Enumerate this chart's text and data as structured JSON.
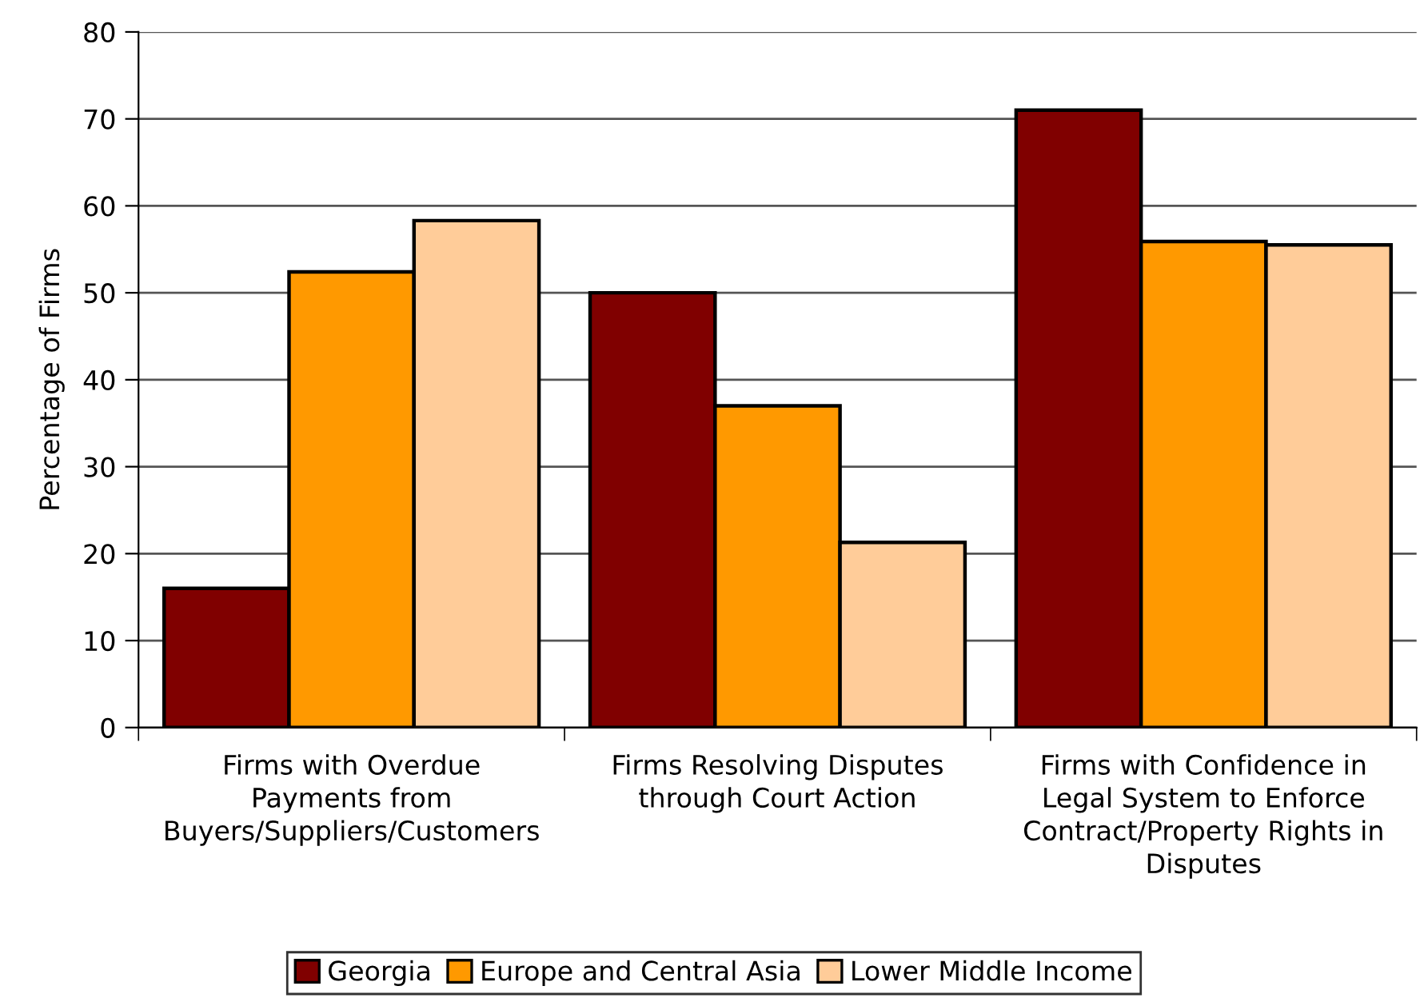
{
  "chart_data": {
    "type": "bar",
    "ylabel": "Percentage of Firms",
    "categories": [
      "Firms with Overdue Payments from Buyers/Suppliers/Customers",
      "Firms Resolving Disputes through Court Action",
      "Firms with Confidence in Legal System to Enforce Contract/Property Rights in Disputes"
    ],
    "series": [
      {
        "name": "Georgia",
        "color": "#800000",
        "values": [
          16,
          50,
          71
        ]
      },
      {
        "name": "Europe and Central Asia",
        "color": "#ff9900",
        "values": [
          52.4,
          37,
          55.9
        ]
      },
      {
        "name": "Lower Middle Income",
        "color": "#ffcc99",
        "values": [
          58.3,
          21.3,
          55.5
        ]
      }
    ],
    "ylim": [
      0,
      80
    ],
    "yticks": [
      0,
      10,
      20,
      30,
      40,
      50,
      60,
      70,
      80
    ],
    "grid": "y",
    "legend": "bottom"
  }
}
